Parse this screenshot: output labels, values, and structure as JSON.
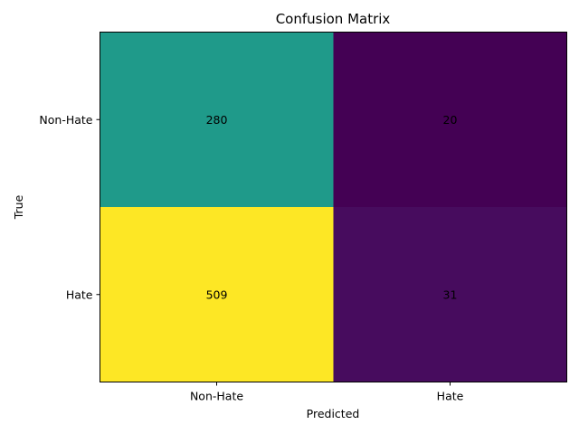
{
  "chart_data": {
    "type": "heatmap",
    "title": "Confusion Matrix",
    "xlabel": "Predicted",
    "ylabel": "True",
    "x_categories": [
      "Non-Hate",
      "Hate"
    ],
    "y_categories": [
      "Non-Hate",
      "Hate"
    ],
    "values": [
      [
        280,
        20
      ],
      [
        509,
        31
      ]
    ],
    "colormap": "viridis",
    "colors": {
      "cell_0_0": "#1f9a8a",
      "cell_0_1": "#440154",
      "cell_1_0": "#fde725",
      "cell_1_1": "#470c5e"
    },
    "grid": false,
    "legend": "none"
  }
}
